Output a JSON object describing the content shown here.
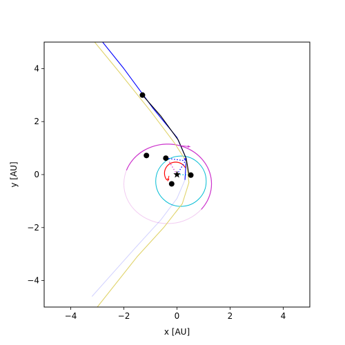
{
  "chart_data": {
    "type": "line",
    "title": "",
    "xlabel": "x [AU]",
    "ylabel": "y [AU]",
    "xlim": [
      -5,
      5
    ],
    "ylim": [
      -5,
      5
    ],
    "grid": false,
    "legend": "none",
    "xticks": [
      -4,
      -2,
      0,
      2,
      4
    ],
    "yticks": [
      -4,
      -2,
      0,
      2,
      4
    ],
    "xtick_labels": [
      "−4",
      "−2",
      "0",
      "2",
      "4"
    ],
    "ytick_labels": [
      "−4",
      "−2",
      "0",
      "2",
      "4"
    ],
    "star": {
      "x": 0,
      "y": 0,
      "marker": "star"
    },
    "orbits": [
      {
        "color": "#ff0000",
        "cx": -0.05,
        "cy": 0.05,
        "rx": 0.42,
        "ry": 0.42,
        "arc_from_deg": 30,
        "arc_to_deg": 220,
        "faded_rest": false
      },
      {
        "color": "#00bcd4",
        "cx": 0.15,
        "cy": -0.25,
        "rx": 0.95,
        "ry": 0.95,
        "arc_from_deg": 0,
        "arc_to_deg": 360,
        "faded_rest": false
      },
      {
        "color": "#cc33cc",
        "cx": -0.35,
        "cy": -0.35,
        "rx": 1.65,
        "ry": 1.5,
        "arc_from_deg": 0,
        "arc_to_deg": 360,
        "faded_rest": true
      }
    ],
    "trajectories": [
      {
        "color": "#0000ff",
        "points": [
          [
            -2.8,
            5.0
          ],
          [
            -2.0,
            4.0
          ],
          [
            -0.9,
            2.5
          ],
          [
            0.0,
            1.4
          ],
          [
            0.35,
            0.6
          ],
          [
            0.3,
            -0.2
          ],
          [
            0.0,
            -0.9
          ],
          [
            -0.6,
            -1.7
          ],
          [
            -1.6,
            -2.8
          ],
          [
            -3.2,
            -4.6
          ]
        ],
        "fade_after_index": 5
      },
      {
        "color": "#e0d36a",
        "points": [
          [
            -3.1,
            5.0
          ],
          [
            -2.2,
            3.9
          ],
          [
            -1.0,
            2.4
          ],
          [
            -0.1,
            1.2
          ],
          [
            0.35,
            0.5
          ],
          [
            0.45,
            -0.3
          ],
          [
            0.2,
            -1.1
          ],
          [
            -0.5,
            -2.0
          ],
          [
            -1.5,
            -3.1
          ],
          [
            -3.0,
            -5.0
          ]
        ],
        "fade_after_index": 99
      },
      {
        "color": "#000000",
        "points": [
          [
            -1.3,
            3.0
          ],
          [
            -0.6,
            2.2
          ],
          [
            0.05,
            1.3
          ],
          [
            0.35,
            0.6
          ],
          [
            0.45,
            0.0
          ]
        ],
        "fade_after_index": 99
      }
    ],
    "bodies": [
      {
        "x": -1.3,
        "y": 3.0
      },
      {
        "x": -1.15,
        "y": 0.72
      },
      {
        "x": -0.42,
        "y": 0.62
      },
      {
        "x": 0.52,
        "y": -0.02
      },
      {
        "x": -0.2,
        "y": -0.35
      }
    ],
    "velocity_arrows": [
      {
        "color": "#cc33cc",
        "from": [
          0.05,
          1.1
        ],
        "to": [
          0.5,
          1.05
        ]
      },
      {
        "color": "#0000ff",
        "from": [
          0.3,
          0.6
        ],
        "to": [
          0.32,
          0.52
        ]
      },
      {
        "color": "#ff0000",
        "from": [
          -0.3,
          -0.05
        ],
        "to": [
          -0.35,
          -0.25
        ]
      }
    ],
    "dotted_lines": [
      {
        "color": "#0000ff",
        "from": [
          0,
          0
        ],
        "to": [
          0.32,
          0.52
        ]
      },
      {
        "color": "#0000ff",
        "from": [
          -0.42,
          0.62
        ],
        "to": [
          0.32,
          0.52
        ]
      },
      {
        "color": "#00bcd4",
        "from": [
          0,
          0
        ],
        "to": [
          0.52,
          -0.02
        ]
      },
      {
        "color": "#cc33cc",
        "from": [
          0,
          0
        ],
        "to": [
          -0.3,
          0.5
        ]
      }
    ]
  }
}
